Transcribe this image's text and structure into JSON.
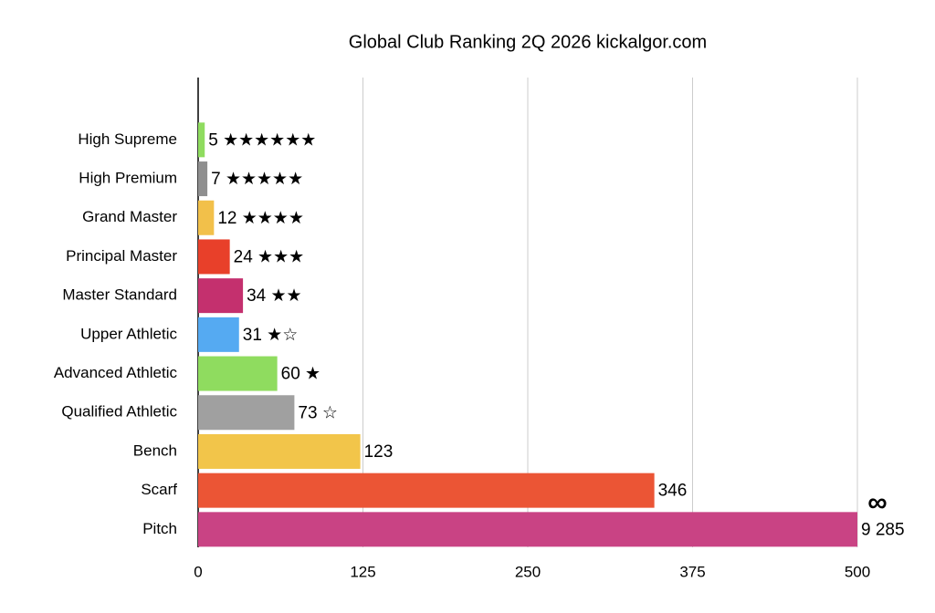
{
  "chart_data": {
    "type": "hbar",
    "title": "Global Club Ranking 2Q 2026 kickalgor.com",
    "categories": [
      "High Supreme",
      "High Premium",
      "Grand Master",
      "Principal Master",
      "Master Standard",
      "Upper Athletic",
      "Advanced Athletic",
      "Qualified Athletic",
      "Bench",
      "Scarf",
      "Pitch"
    ],
    "values": [
      5,
      7,
      12,
      24,
      34,
      31,
      60,
      73,
      123,
      346,
      9285
    ],
    "value_labels": [
      "5 ★★★★★★",
      "7 ★★★★★",
      "12  ★★★★",
      "24 ★★★",
      "34 ★★",
      "31 ★☆",
      "60 ★",
      "73 ☆",
      "123",
      "346",
      "9 285"
    ],
    "colors": [
      "#8fdc5f",
      "#8f8f8f",
      "#f2c04a",
      "#e8402a",
      "#c4306e",
      "#55aaf2",
      "#8fdc5f",
      "#a0a0a0",
      "#f2c54a",
      "#eb5535",
      "#c94384"
    ],
    "annotation": "∞",
    "xlim": [
      0,
      500
    ],
    "xticks": [
      0,
      125,
      250,
      375,
      500
    ],
    "grid": true
  }
}
